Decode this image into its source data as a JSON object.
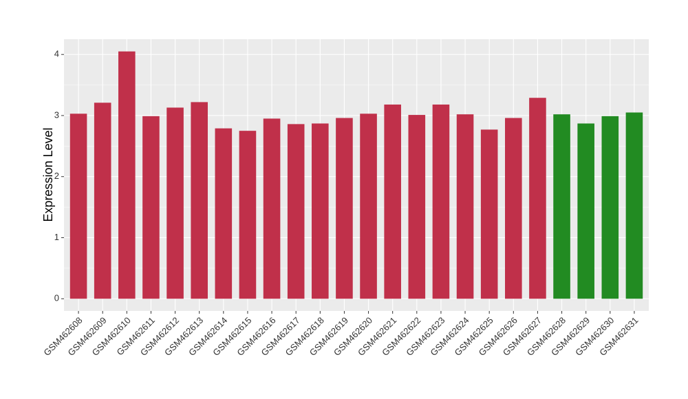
{
  "chart_data": {
    "type": "bar",
    "y_label": "Expression Level",
    "categories": [
      "GSM462608",
      "GSM462609",
      "GSM462610",
      "GSM462611",
      "GSM462612",
      "GSM462613",
      "GSM462614",
      "GSM462615",
      "GSM462616",
      "GSM462617",
      "GSM462618",
      "GSM462619",
      "GSM462620",
      "GSM462621",
      "GSM462622",
      "GSM462623",
      "GSM462624",
      "GSM462625",
      "GSM462626",
      "GSM462627",
      "GSM462628",
      "GSM462629",
      "GSM462630",
      "GSM462631"
    ],
    "values": [
      3.03,
      3.21,
      4.05,
      2.99,
      3.13,
      3.22,
      2.79,
      2.75,
      2.95,
      2.86,
      2.87,
      2.96,
      3.03,
      3.18,
      3.01,
      3.18,
      3.02,
      2.77,
      2.96,
      3.29,
      3.02,
      2.87,
      2.99,
      3.05
    ],
    "colors": [
      "#c0304a",
      "#c0304a",
      "#c0304a",
      "#c0304a",
      "#c0304a",
      "#c0304a",
      "#c0304a",
      "#c0304a",
      "#c0304a",
      "#c0304a",
      "#c0304a",
      "#c0304a",
      "#c0304a",
      "#c0304a",
      "#c0304a",
      "#c0304a",
      "#c0304a",
      "#c0304a",
      "#c0304a",
      "#c0304a",
      "#228b22",
      "#228b22",
      "#228b22",
      "#228b22"
    ],
    "ylim": [
      -0.2,
      4.25
    ],
    "yticks": [
      0,
      1,
      2,
      3,
      4
    ],
    "grid": true
  }
}
